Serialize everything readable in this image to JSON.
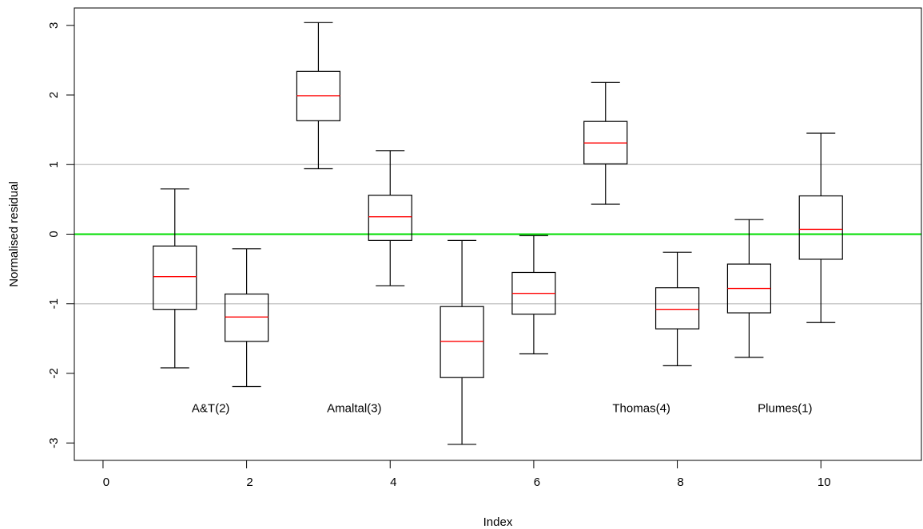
{
  "chart_data": {
    "type": "boxplot",
    "xlabel": "Index",
    "ylabel": "Normalised residual",
    "xlim": [
      -0.4,
      11.4
    ],
    "ylim": [
      -3.25,
      3.25
    ],
    "x_ticks": [
      0,
      2,
      4,
      6,
      8,
      10
    ],
    "y_ticks": [
      -3,
      -2,
      -1,
      0,
      1,
      2,
      3
    ],
    "reference_lines": [
      {
        "y": 0,
        "color": "#00dd00"
      },
      {
        "y": 1,
        "color": "#bebebe"
      },
      {
        "y": -1,
        "color": "#bebebe"
      }
    ],
    "boxes": [
      {
        "x": 1,
        "min": -1.92,
        "q1": -1.08,
        "median": -0.61,
        "q3": -0.17,
        "max": 0.65
      },
      {
        "x": 2,
        "min": -2.19,
        "q1": -1.54,
        "median": -1.19,
        "q3": -0.86,
        "max": -0.21
      },
      {
        "x": 3,
        "min": 0.94,
        "q1": 1.63,
        "median": 1.99,
        "q3": 2.34,
        "max": 3.04
      },
      {
        "x": 4,
        "min": -0.74,
        "q1": -0.09,
        "median": 0.25,
        "q3": 0.56,
        "max": 1.2
      },
      {
        "x": 5,
        "min": -3.02,
        "q1": -2.06,
        "median": -1.54,
        "q3": -1.04,
        "max": -0.09
      },
      {
        "x": 6,
        "min": -1.72,
        "q1": -1.15,
        "median": -0.85,
        "q3": -0.55,
        "max": -0.02
      },
      {
        "x": 7,
        "min": 0.43,
        "q1": 1.01,
        "median": 1.31,
        "q3": 1.62,
        "max": 2.18
      },
      {
        "x": 8,
        "min": -1.89,
        "q1": -1.36,
        "median": -1.08,
        "q3": -0.77,
        "max": -0.26
      },
      {
        "x": 9,
        "min": -1.77,
        "q1": -1.13,
        "median": -0.78,
        "q3": -0.43,
        "max": 0.21
      },
      {
        "x": 10,
        "min": -1.27,
        "q1": -0.36,
        "median": 0.07,
        "q3": 0.55,
        "max": 1.45
      }
    ],
    "annotations": [
      {
        "text": "A&T(2)",
        "x": 1.5,
        "y": -2.5
      },
      {
        "text": "Amaltal(3)",
        "x": 3.5,
        "y": -2.5
      },
      {
        "text": "Thomas(4)",
        "x": 7.5,
        "y": -2.5
      },
      {
        "text": "Plumes(1)",
        "x": 9.5,
        "y": -2.5
      }
    ],
    "colors": {
      "box": "#000000",
      "median": "#ff0000",
      "zero_line": "#00dd00",
      "ref_line": "#bebebe"
    }
  }
}
